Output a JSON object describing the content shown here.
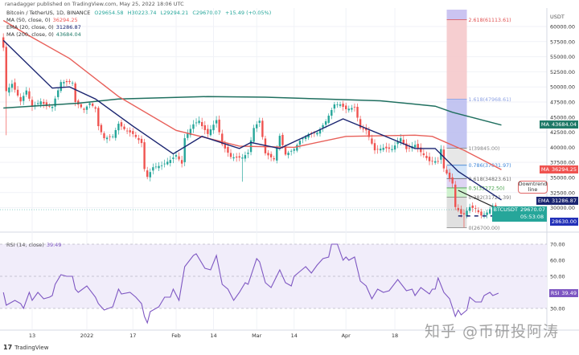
{
  "header": {
    "published": "ranadagger published on TradingView.com, May 25, 2022 18:06 UTC"
  },
  "legend": {
    "symbol": "Bitcoin / TetherUS, 1D, BINANCE",
    "open": "O29654.58",
    "high": "H30223.74",
    "low": "L29294.21",
    "close": "C29670.07",
    "change": "+15.49 (+0.05%)",
    "ma50_label": "MA (50, close, 0)",
    "ma50_value": "36294.25",
    "ema20_label": "EMA (20, close, 0)",
    "ema20_value": "31286.87",
    "ma200_label": "MA (200, close, 0)",
    "ma200_value": "43684.04",
    "rsi_label": "RSI (14, close)",
    "rsi_value": "39.49"
  },
  "badges": {
    "ma200": {
      "tag": "MA",
      "value": "43684.04",
      "color": "#1f7a68"
    },
    "ma50": {
      "tag": "MA",
      "value": "36294.25",
      "color": "#ef5350"
    },
    "ema20": {
      "tag": "EMA",
      "value": "31286.87",
      "color": "#1a2470"
    },
    "price": {
      "tag": "BTCUSDT",
      "value": "29670.07",
      "countdown": "05:53:08",
      "color": "#26a69a"
    },
    "support": {
      "value": "28630.00",
      "color": "#2230b8"
    },
    "rsi": {
      "tag": "RSI",
      "value": "39.49",
      "color": "#7e57c2"
    }
  },
  "annotation": {
    "callout": "Downtrend line"
  },
  "footer": {
    "brand": "TradingView"
  },
  "watermark": "知乎 @币研投阿涛",
  "chart_data": {
    "type": "candlestick",
    "currency": "USDT",
    "colors": {
      "up": "#26a69a",
      "down": "#ef5350",
      "ma50": "#e8605a",
      "ema20": "#1a2470",
      "ma200": "#1f6f5f",
      "rsi": "#7e57c2"
    },
    "price_axis": {
      "range": [
        25500,
        62000
      ],
      "ticks": [
        60000,
        57500,
        55000,
        52500,
        50000,
        47500,
        45000,
        42500,
        40000,
        37500,
        35000,
        32500,
        30000
      ],
      "tick_labels": [
        "60000.00",
        "57500.00",
        "55000.00",
        "52500.00",
        "50000.00",
        "47500.00",
        "45000.00",
        "42500.00",
        "40000.00",
        "37500.00",
        "35000.00",
        "32500.00",
        "30000.00"
      ]
    },
    "date_ticks": [
      {
        "date": "2021-12-13",
        "label": "13"
      },
      {
        "date": "2022-01-01",
        "label": "2022"
      },
      {
        "date": "2022-01-17",
        "label": "17"
      },
      {
        "date": "2022-02-01",
        "label": "Feb"
      },
      {
        "date": "2022-02-14",
        "label": "14"
      },
      {
        "date": "2022-03-01",
        "label": "Mar"
      },
      {
        "date": "2022-03-14",
        "label": "14"
      },
      {
        "date": "2022-04-01",
        "label": "Apr"
      },
      {
        "date": "2022-04-18",
        "label": "18"
      }
    ],
    "close": [
      [
        "2021-12-03",
        56500
      ],
      [
        "2021-12-04",
        49300
      ],
      [
        "2021-12-06",
        50500
      ],
      [
        "2021-12-09",
        47600
      ],
      [
        "2021-12-11",
        49400
      ],
      [
        "2021-12-13",
        46700
      ],
      [
        "2021-12-16",
        47600
      ],
      [
        "2021-12-18",
        46800
      ],
      [
        "2021-12-20",
        46700
      ],
      [
        "2021-12-23",
        50800
      ],
      [
        "2021-12-26",
        50800
      ],
      [
        "2021-12-27",
        50700
      ],
      [
        "2021-12-28",
        47500
      ],
      [
        "2021-12-31",
        46200
      ],
      [
        "2022-01-02",
        47300
      ],
      [
        "2022-01-04",
        46400
      ],
      [
        "2022-01-05",
        43500
      ],
      [
        "2022-01-07",
        41500
      ],
      [
        "2022-01-10",
        41800
      ],
      [
        "2022-01-12",
        43900
      ],
      [
        "2022-01-14",
        43000
      ],
      [
        "2022-01-17",
        42200
      ],
      [
        "2022-01-20",
        40700
      ],
      [
        "2022-01-21",
        36400
      ],
      [
        "2022-01-22",
        35100
      ],
      [
        "2022-01-24",
        36700
      ],
      [
        "2022-01-27",
        37000
      ],
      [
        "2022-01-30",
        37900
      ],
      [
        "2022-02-01",
        38700
      ],
      [
        "2022-02-03",
        37300
      ],
      [
        "2022-02-04",
        41500
      ],
      [
        "2022-02-07",
        43800
      ],
      [
        "2022-02-09",
        44400
      ],
      [
        "2022-02-10",
        43500
      ],
      [
        "2022-02-12",
        42200
      ],
      [
        "2022-02-15",
        44500
      ],
      [
        "2022-02-17",
        40500
      ],
      [
        "2022-02-20",
        38400
      ],
      [
        "2022-02-22",
        38300
      ],
      [
        "2022-02-24",
        38300
      ],
      [
        "2022-02-26",
        39100
      ],
      [
        "2022-02-28",
        43200
      ],
      [
        "2022-03-02",
        44400
      ],
      [
        "2022-03-04",
        39000
      ],
      [
        "2022-03-07",
        38000
      ],
      [
        "2022-03-09",
        41900
      ],
      [
        "2022-03-11",
        38800
      ],
      [
        "2022-03-14",
        39700
      ],
      [
        "2022-03-16",
        41100
      ],
      [
        "2022-03-19",
        42200
      ],
      [
        "2022-03-22",
        42400
      ],
      [
        "2022-03-25",
        44300
      ],
      [
        "2022-03-28",
        47100
      ],
      [
        "2022-03-30",
        47100
      ],
      [
        "2022-04-01",
        46300
      ],
      [
        "2022-04-04",
        46600
      ],
      [
        "2022-04-06",
        43200
      ],
      [
        "2022-04-08",
        42800
      ],
      [
        "2022-04-11",
        39500
      ],
      [
        "2022-04-14",
        39900
      ],
      [
        "2022-04-17",
        39700
      ],
      [
        "2022-04-20",
        41500
      ],
      [
        "2022-04-22",
        39700
      ],
      [
        "2022-04-25",
        40400
      ],
      [
        "2022-04-27",
        39200
      ],
      [
        "2022-04-30",
        37700
      ],
      [
        "2022-05-03",
        37700
      ],
      [
        "2022-05-04",
        39700
      ],
      [
        "2022-05-05",
        36500
      ],
      [
        "2022-05-08",
        34000
      ],
      [
        "2022-05-09",
        30100
      ],
      [
        "2022-05-11",
        29000
      ],
      [
        "2022-05-12",
        28900
      ],
      [
        "2022-05-14",
        30100
      ],
      [
        "2022-05-16",
        29800
      ],
      [
        "2022-05-18",
        28700
      ],
      [
        "2022-05-20",
        29200
      ],
      [
        "2022-05-22",
        30300
      ],
      [
        "2022-05-23",
        29100
      ],
      [
        "2022-05-25",
        29670
      ]
    ],
    "lows": [
      [
        "2021-12-04",
        42000
      ],
      [
        "2022-02-24",
        34300
      ],
      [
        "2022-05-12",
        26700
      ]
    ],
    "ma200": [
      [
        "2021-12-03",
        46500
      ],
      [
        "2021-12-29",
        47300
      ],
      [
        "2022-01-12",
        48000
      ],
      [
        "2022-02-12",
        48400
      ],
      [
        "2022-03-04",
        48300
      ],
      [
        "2022-03-24",
        48000
      ],
      [
        "2022-04-13",
        47700
      ],
      [
        "2022-05-02",
        46800
      ],
      [
        "2022-05-08",
        45800
      ],
      [
        "2022-05-25",
        43684.04
      ]
    ],
    "ma50": [
      [
        "2021-12-03",
        61000
      ],
      [
        "2021-12-10",
        59000
      ],
      [
        "2021-12-26",
        54700
      ],
      [
        "2022-01-12",
        48400
      ],
      [
        "2022-02-01",
        42800
      ],
      [
        "2022-02-23",
        40200
      ],
      [
        "2022-03-14",
        40000
      ],
      [
        "2022-04-01",
        41800
      ],
      [
        "2022-04-25",
        42000
      ],
      [
        "2022-05-01",
        41800
      ],
      [
        "2022-05-12",
        39500
      ],
      [
        "2022-05-25",
        36294.25
      ]
    ],
    "ema20": [
      [
        "2021-12-03",
        57700
      ],
      [
        "2021-12-20",
        49800
      ],
      [
        "2021-12-26",
        50000
      ],
      [
        "2022-01-04",
        48000
      ],
      [
        "2022-01-17",
        43500
      ],
      [
        "2022-01-31",
        38900
      ],
      [
        "2022-02-10",
        41800
      ],
      [
        "2022-02-23",
        39800
      ],
      [
        "2022-02-27",
        40800
      ],
      [
        "2022-03-09",
        39800
      ],
      [
        "2022-03-31",
        44700
      ],
      [
        "2022-04-25",
        39800
      ],
      [
        "2022-05-02",
        39800
      ],
      [
        "2022-05-10",
        36000
      ],
      [
        "2022-05-25",
        31286.87
      ]
    ],
    "fibonacci": {
      "start_date": "2022-05-06",
      "end_date": "2022-05-13",
      "levels": [
        {
          "ratio": 2.618,
          "price": 61113.61,
          "label": "2.618(61113.61)",
          "color": "#e05050",
          "fill": "#f5c9cb"
        },
        {
          "ratio": 1.618,
          "price": 47968.61,
          "label": "1.618(47968.61)",
          "color": "#8fa3e3",
          "fill": "#bcbff0"
        },
        {
          "ratio": 1,
          "price": 39845.0,
          "label": "1(39845.00)",
          "color": "#888888",
          "fill": "#e4e4e4"
        },
        {
          "ratio": 0.786,
          "price": 37031.97,
          "label": "0.786(37031.97)",
          "color": "#3d85d8",
          "fill": "#cfe2f7"
        },
        {
          "ratio": 0.618,
          "price": 34823.61,
          "label": "0.618(34823.61)",
          "color": "#666666",
          "fill": "#d9cff2"
        },
        {
          "ratio": 0.5,
          "price": 33272.5,
          "label": "0.5(33272.50)",
          "color": "#43a047",
          "fill": "#c9efc9"
        },
        {
          "ratio": 0.382,
          "price": 31721.39,
          "label": "0.382(31721.39)",
          "color": "#777777",
          "fill": "#dddddd"
        },
        {
          "ratio": 0,
          "price": 26700.0,
          "label": "0(26700.00)",
          "color": "#777777",
          "fill": "#f2cccc"
        }
      ]
    },
    "downtrend_line": [
      [
        "2022-05-10",
        32870
      ],
      [
        "2022-05-26",
        29300
      ]
    ],
    "support_line": {
      "price": 28630,
      "from": "2022-05-10"
    },
    "rsi": {
      "levels": [
        70,
        50,
        30
      ],
      "ticks": [
        70,
        60,
        50,
        30
      ],
      "tick_labels": [
        "70.00",
        "60.00",
        "50.00",
        "30.00"
      ],
      "values": [
        [
          "2021-12-03",
          40
        ],
        [
          "2021-12-04",
          32
        ],
        [
          "2021-12-07",
          35
        ],
        [
          "2021-12-09",
          33
        ],
        [
          "2021-12-10",
          30
        ],
        [
          "2021-12-12",
          40
        ],
        [
          "2021-12-13",
          35
        ],
        [
          "2021-12-15",
          40
        ],
        [
          "2021-12-17",
          36
        ],
        [
          "2021-12-19",
          37
        ],
        [
          "2021-12-20",
          38
        ],
        [
          "2021-12-21",
          45
        ],
        [
          "2021-12-23",
          51
        ],
        [
          "2021-12-25",
          50
        ],
        [
          "2021-12-27",
          50
        ],
        [
          "2021-12-28",
          42
        ],
        [
          "2021-12-29",
          40
        ],
        [
          "2022-01-01",
          44
        ],
        [
          "2022-01-04",
          37
        ],
        [
          "2022-01-05",
          33
        ],
        [
          "2022-01-07",
          29
        ],
        [
          "2022-01-10",
          31
        ],
        [
          "2022-01-12",
          42
        ],
        [
          "2022-01-13",
          39
        ],
        [
          "2022-01-16",
          40
        ],
        [
          "2022-01-18",
          37
        ],
        [
          "2022-01-20",
          33
        ],
        [
          "2022-01-21",
          25
        ],
        [
          "2022-01-22",
          21
        ],
        [
          "2022-01-23",
          28
        ],
        [
          "2022-01-26",
          31
        ],
        [
          "2022-01-28",
          37
        ],
        [
          "2022-01-30",
          37
        ],
        [
          "2022-01-31",
          42
        ],
        [
          "2022-02-02",
          35
        ],
        [
          "2022-02-04",
          56
        ],
        [
          "2022-02-07",
          63
        ],
        [
          "2022-02-08",
          64
        ],
        [
          "2022-02-11",
          55
        ],
        [
          "2022-02-13",
          54
        ],
        [
          "2022-02-15",
          63
        ],
        [
          "2022-02-17",
          45
        ],
        [
          "2022-02-19",
          42
        ],
        [
          "2022-02-21",
          35
        ],
        [
          "2022-02-23",
          40
        ],
        [
          "2022-02-25",
          46
        ],
        [
          "2022-02-26",
          45
        ],
        [
          "2022-03-01",
          61
        ],
        [
          "2022-03-02",
          59
        ],
        [
          "2022-03-04",
          46
        ],
        [
          "2022-03-06",
          43
        ],
        [
          "2022-03-09",
          54
        ],
        [
          "2022-03-11",
          46
        ],
        [
          "2022-03-13",
          44
        ],
        [
          "2022-03-14",
          50
        ],
        [
          "2022-03-16",
          53
        ],
        [
          "2022-03-18",
          56
        ],
        [
          "2022-03-20",
          52
        ],
        [
          "2022-03-22",
          57
        ],
        [
          "2022-03-24",
          61
        ],
        [
          "2022-03-26",
          62
        ],
        [
          "2022-03-27",
          70
        ],
        [
          "2022-03-29",
          70
        ],
        [
          "2022-03-31",
          60
        ],
        [
          "2022-04-01",
          62
        ],
        [
          "2022-04-02",
          60
        ],
        [
          "2022-04-04",
          62
        ],
        [
          "2022-04-06",
          47
        ],
        [
          "2022-04-08",
          44
        ],
        [
          "2022-04-10",
          36
        ],
        [
          "2022-04-12",
          42
        ],
        [
          "2022-04-14",
          40
        ],
        [
          "2022-04-16",
          41
        ],
        [
          "2022-04-19",
          48
        ],
        [
          "2022-04-22",
          41
        ],
        [
          "2022-04-24",
          42
        ],
        [
          "2022-04-25",
          38
        ],
        [
          "2022-04-27",
          43
        ],
        [
          "2022-04-30",
          39
        ],
        [
          "2022-05-01",
          42
        ],
        [
          "2022-05-02",
          42
        ],
        [
          "2022-05-03",
          49
        ],
        [
          "2022-05-05",
          40
        ],
        [
          "2022-05-07",
          36
        ],
        [
          "2022-05-09",
          25
        ],
        [
          "2022-05-10",
          29
        ],
        [
          "2022-05-11",
          26
        ],
        [
          "2022-05-13",
          29
        ],
        [
          "2022-05-14",
          37
        ],
        [
          "2022-05-16",
          34
        ],
        [
          "2022-05-18",
          34
        ],
        [
          "2022-05-19",
          38
        ],
        [
          "2022-05-21",
          40
        ],
        [
          "2022-05-22",
          38
        ],
        [
          "2022-05-24",
          39.49
        ]
      ]
    }
  }
}
